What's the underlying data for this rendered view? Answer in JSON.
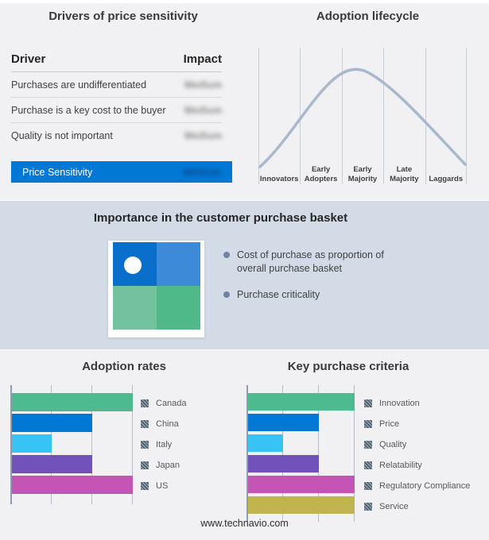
{
  "footer": {
    "url": "www.technavio.com"
  },
  "colors": {
    "accent_blue": "#0078d4",
    "mid_band_background": "#d3dce6",
    "page_background": "#f1f1f3",
    "curve_line": "#a9b8cd",
    "legend_marker_hatch": "#4e5e6b"
  },
  "drivers": {
    "title": "Drivers of price sensitivity",
    "col_driver": "Driver",
    "col_impact": "Impact",
    "impact_redacted": true,
    "rows": [
      {
        "driver": "Purchases are undifferentiated",
        "impact": "Medium"
      },
      {
        "driver": "Purchase is a key cost to the buyer",
        "impact": "Medium"
      },
      {
        "driver": "Quality is not important",
        "impact": "Medium"
      }
    ],
    "highlight": {
      "driver": "Price Sensitivity",
      "impact": "Medium",
      "background": "#0078d4"
    }
  },
  "basket": {
    "title": "Importance in the customer purchase basket",
    "bullets": [
      "Cost of purchase as proportion of overall purchase basket",
      "Purchase criticality"
    ],
    "quadrant": {
      "top_left": "#0a6fca",
      "top_right": "#3d8bd8",
      "bottom_left": "#74c19e",
      "bottom_right": "#4fb98a",
      "marker": "white dot in top-left quadrant"
    }
  },
  "chart_data": [
    {
      "id": "adoption-lifecycle",
      "type": "line",
      "title": "Adoption lifecycle",
      "x_categories": [
        "Innovators",
        "Early Adopters",
        "Early Majority",
        "Late Majority",
        "Laggards"
      ],
      "y_axis": "adoption level (unlabeled)",
      "shape": "bell curve, peak within Early Majority segment",
      "curve_points_relative": [
        {
          "x": 0.0,
          "y": 0.13
        },
        {
          "x": 0.25,
          "y": 0.55
        },
        {
          "x": 0.49,
          "y": 1.0
        },
        {
          "x": 0.75,
          "y": 0.52
        },
        {
          "x": 1.0,
          "y": 0.15
        }
      ],
      "grid": "6 vertical segment dividers",
      "legend": "none",
      "line_color": "#a9b8cd"
    },
    {
      "id": "adoption-rates",
      "type": "bar",
      "orientation": "horizontal",
      "title": "Adoption rates",
      "categories": [
        "Canada",
        "China",
        "Italy",
        "Japan",
        "US"
      ],
      "values": [
        3,
        2,
        1,
        2,
        3
      ],
      "xlim": [
        0,
        3
      ],
      "x_ticks_labeled": false,
      "note": "axis tick values not shown; values expressed in gridline units",
      "colors": [
        "#4dbb8f",
        "#0078d4",
        "#38c3f5",
        "#7152bb",
        "#c455b4"
      ],
      "legend_position": "right",
      "legend_marker": "gray hatched square"
    },
    {
      "id": "key-purchase-criteria",
      "type": "bar",
      "orientation": "horizontal",
      "title": "Key purchase criteria",
      "categories": [
        "Innovation",
        "Price",
        "Quality",
        "Relatability",
        "Regulatory Compliance",
        "Service"
      ],
      "values": [
        3,
        2,
        1,
        2,
        3,
        3
      ],
      "xlim": [
        0,
        3
      ],
      "x_ticks_labeled": false,
      "note": "axis tick values not shown; values expressed in gridline units",
      "colors": [
        "#4dbb8f",
        "#0078d4",
        "#38c3f5",
        "#7152bb",
        "#c455b4",
        "#c0b44e"
      ],
      "legend_position": "right",
      "legend_marker": "gray hatched square"
    }
  ]
}
